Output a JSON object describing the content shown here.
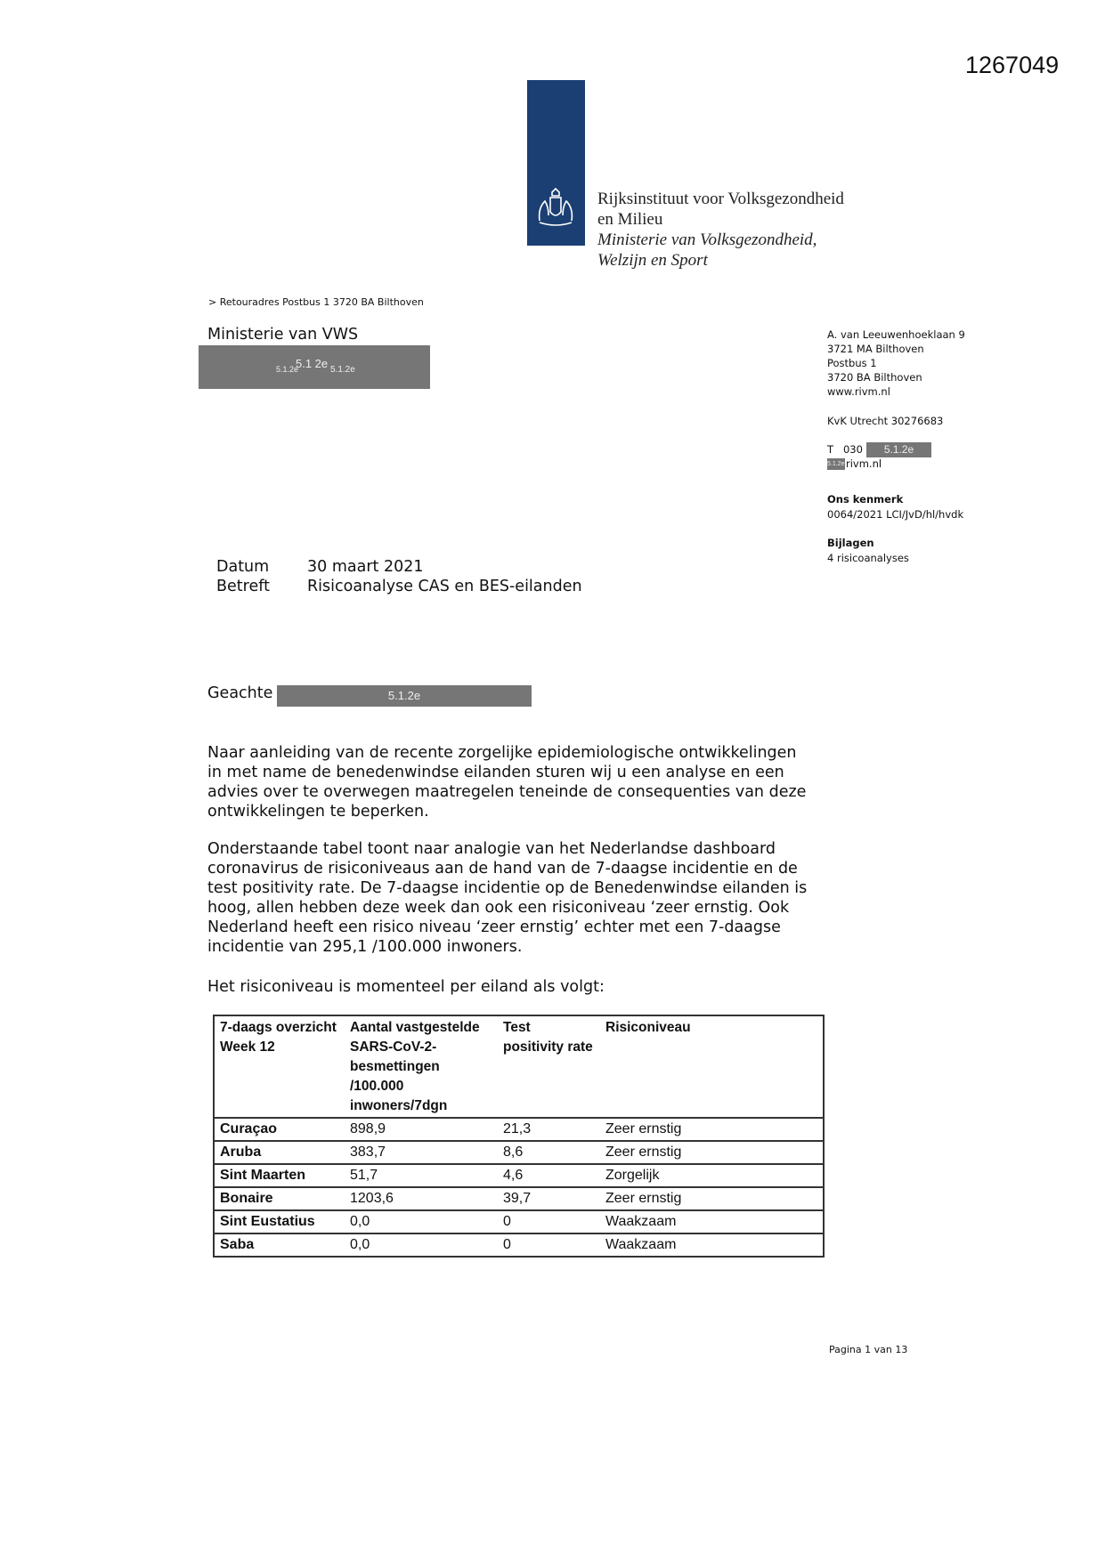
{
  "document_number": "1267049",
  "logo": {
    "org_line1": "Rijksinstituut voor Volksgezondheid",
    "org_line2": "en Milieu",
    "ministry_line1": "Ministerie van Volksgezondheid,",
    "ministry_line2": "Welzijn en Sport",
    "brand_color": "#1b3f73"
  },
  "return_address": "> Retouradres Postbus 1 3720 BA Bilthoven",
  "recipient": {
    "name": "Ministerie van VWS",
    "redaction_big": "5.1 2e",
    "redaction_left": "5.1.2e",
    "redaction_right": "5.1.2e"
  },
  "sender": {
    "address_lines": [
      "A. van Leeuwenhoeklaan 9",
      "3721 MA Bilthoven",
      "Postbus 1",
      "3720 BA Bilthoven",
      "www.rivm.nl"
    ],
    "kvk": "KvK Utrecht 30276683",
    "phone_prefix": "T   030",
    "phone_redaction": "5.1.2e",
    "email_redaction": "5.1.2e",
    "email_suffix": "rivm.nl",
    "reference_label": "Ons kenmerk",
    "reference_value": "0064/2021 LCI/JvD/hl/hvdk",
    "attachments_label": "Bijlagen",
    "attachments_value": "4 risicoanalyses"
  },
  "meta": {
    "date_label": "Datum",
    "date_value": "30 maart 2021",
    "subject_label": "Betreft",
    "subject_value": "Risicoanalyse CAS en BES-eilanden"
  },
  "salutation": {
    "text": "Geachte",
    "redaction": "5.1.2e"
  },
  "body": {
    "paragraph1": "Naar aanleiding van de recente zorgelijke epidemiologische ontwikkelingen in met name de benedenwindse eilanden sturen wij u een analyse en een advies over te overwegen maatregelen teneinde de consequenties van deze ontwikkelingen te beperken.",
    "paragraph2": "Onderstaande tabel toont naar analogie van het Nederlandse dashboard coronavirus de risiconiveaus aan de hand van de 7-daagse incidentie en de test positivity rate. De 7-daagse incidentie op de Benedenwindse eilanden is hoog, allen hebben deze week dan ook een risiconiveau ‘zeer ernstig. Ook Nederland heeft een risico niveau ‘zeer ernstig’ echter met een 7-daagse incidentie van 295,1 /100.000 inwoners.",
    "paragraph3": "Het risiconiveau is momenteel per eiland als volgt:"
  },
  "table": {
    "headers": [
      "7-daags overzicht Week 12",
      "Aantal vastgestelde SARS-CoV-2-besmettingen /100.000 inwoners/7dgn",
      "Test positivity rate",
      "Risiconiveau"
    ],
    "rows": [
      [
        "Curaçao",
        "898,9",
        "21,3",
        "Zeer ernstig"
      ],
      [
        "Aruba",
        "383,7",
        "8,6",
        "Zeer ernstig"
      ],
      [
        "Sint Maarten",
        "51,7",
        "4,6",
        "Zorgelijk"
      ],
      [
        "Bonaire",
        "1203,6",
        "39,7",
        "Zeer ernstig"
      ],
      [
        "Sint Eustatius",
        "0,0",
        "0",
        "Waakzaam"
      ],
      [
        "Saba",
        "0,0",
        "0",
        "Waakzaam"
      ]
    ]
  },
  "footer": {
    "page": "Pagina 1 van 13"
  }
}
